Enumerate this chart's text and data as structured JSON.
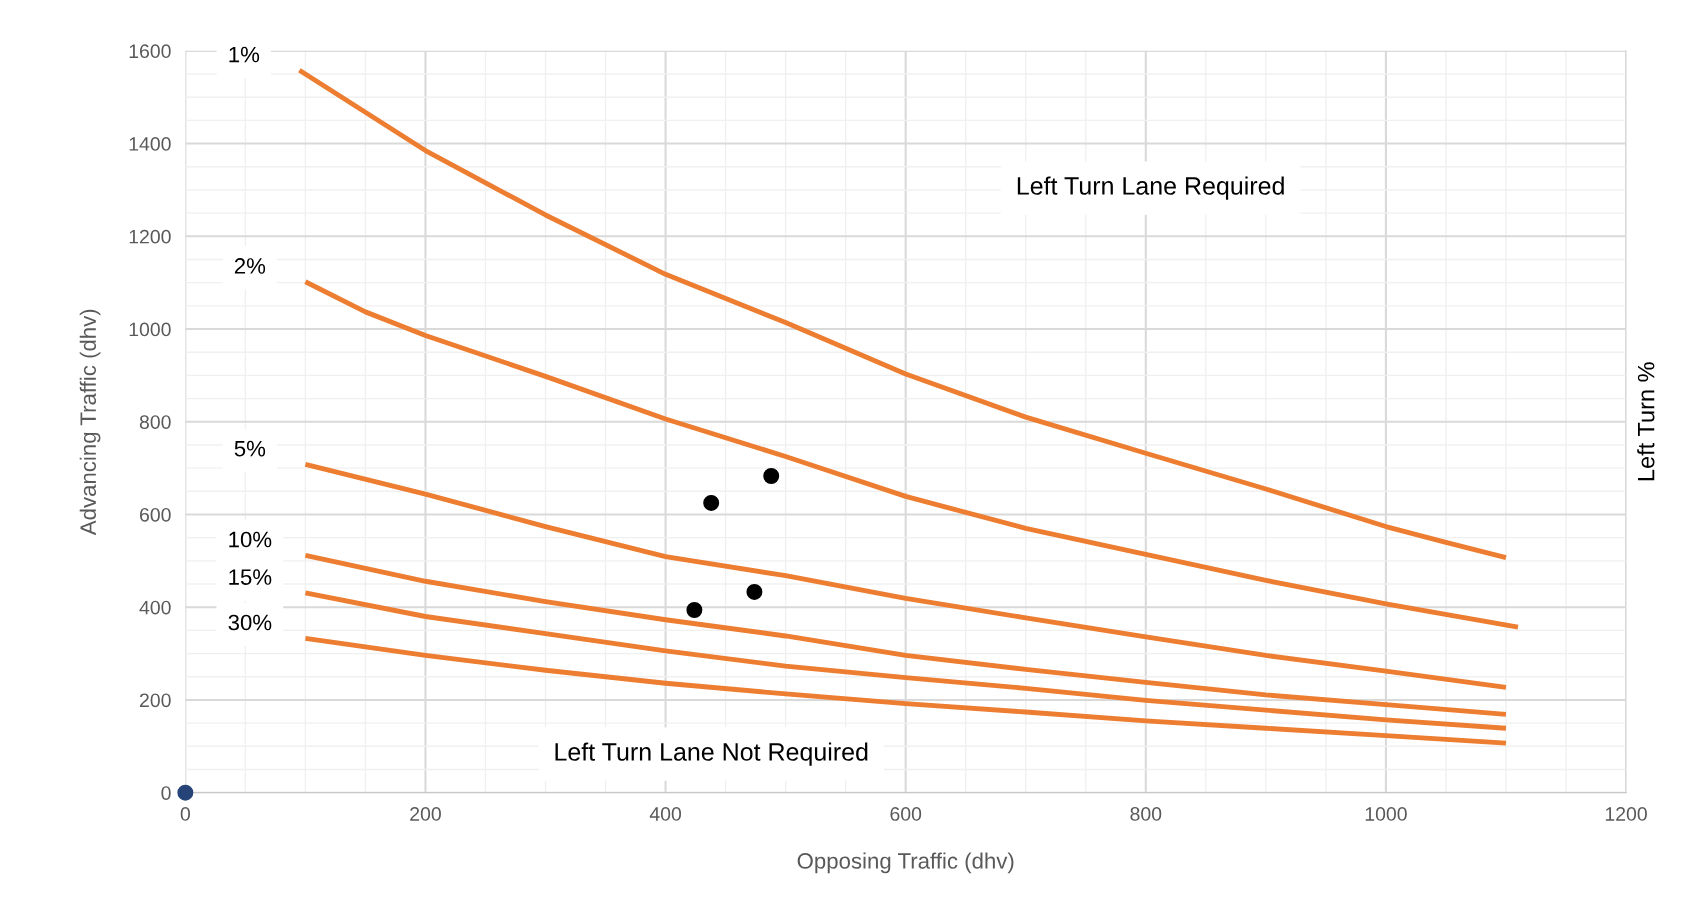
{
  "chart_data": {
    "type": "line",
    "xlabel": "Opposing Traffic (dhv)",
    "ylabel": "Advancing Traffic (dhv)",
    "y2label": "Left Turn %",
    "xlim": [
      0,
      1200
    ],
    "xticks": [
      0,
      200,
      400,
      600,
      800,
      1000,
      1200
    ],
    "ylim": [
      0,
      1600
    ],
    "yticks": [
      0,
      200,
      400,
      600,
      800,
      1000,
      1200,
      1400,
      1600
    ],
    "grid": true,
    "legend": false,
    "marker": "none",
    "line_style": "solid",
    "series": [
      {
        "name": "1%",
        "color": "#ed7d31",
        "x": [
          95,
          200,
          300,
          400,
          500,
          600,
          700,
          800,
          900,
          1000,
          1050,
          1100
        ],
        "values": [
          1558,
          1385,
          1246,
          1118,
          1014,
          903,
          810,
          732,
          655,
          574,
          540,
          507
        ]
      },
      {
        "name": "2%",
        "color": "#ed7d31",
        "x": [
          100,
          150,
          200,
          300,
          400,
          500,
          600,
          700,
          800,
          900,
          1000,
          1110
        ],
        "values": [
          1102,
          1037,
          986,
          898,
          806,
          725,
          639,
          570,
          514,
          458,
          407,
          357
        ]
      },
      {
        "name": "5%",
        "color": "#ed7d31",
        "x": [
          100,
          200,
          300,
          400,
          500,
          600,
          700,
          800,
          900,
          1000,
          1100
        ],
        "values": [
          708,
          644,
          574,
          509,
          468,
          419,
          377,
          336,
          296,
          262,
          227
        ]
      },
      {
        "name": "10%",
        "color": "#ed7d31",
        "x": [
          100,
          200,
          300,
          400,
          500,
          600,
          700,
          800,
          900,
          1000,
          1100
        ],
        "values": [
          512,
          456,
          412,
          373,
          338,
          296,
          266,
          238,
          211,
          190,
          169
        ]
      },
      {
        "name": "15%",
        "color": "#ed7d31",
        "x": [
          100,
          200,
          300,
          400,
          500,
          600,
          700,
          800,
          900,
          1000,
          1100
        ],
        "values": [
          431,
          380,
          343,
          306,
          273,
          248,
          225,
          199,
          178,
          157,
          139
        ]
      },
      {
        "name": "30%",
        "color": "#ed7d31",
        "x": [
          100,
          200,
          300,
          400,
          500,
          600,
          700,
          800,
          900,
          1000,
          1100
        ],
        "values": [
          333,
          296,
          264,
          236,
          213,
          192,
          174,
          155,
          139,
          123,
          107
        ]
      },
      {
        "type": "scatter",
        "marker": "circle",
        "color": "#000000",
        "x": [
          438,
          488,
          424,
          474
        ],
        "values": [
          625,
          683,
          394,
          433
        ]
      },
      {
        "type": "scatter",
        "marker": "circle",
        "color": "#264478",
        "x": [
          0
        ],
        "values": [
          0
        ]
      }
    ],
    "annotations": [
      "Left Turn Lane Required",
      "Left Turn Lane Not Required"
    ]
  }
}
